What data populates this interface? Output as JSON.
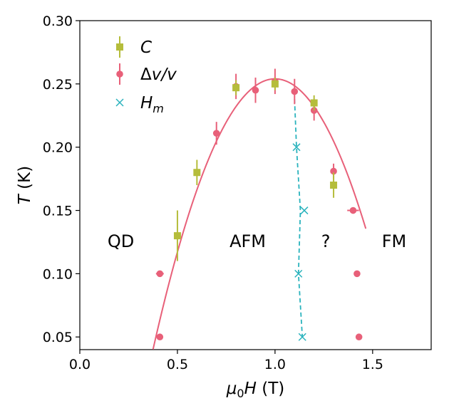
{
  "chart_data": {
    "type": "scatter",
    "xlabel": {
      "var": "μ",
      "sub": "0",
      "var2": "H",
      "unit": " (T)"
    },
    "ylabel": {
      "var": "T",
      "unit": " (K)"
    },
    "xlim": [
      0.0,
      1.8
    ],
    "ylim": [
      0.04,
      0.3
    ],
    "xticks": [
      "0.0",
      "0.5",
      "1.0",
      "1.5"
    ],
    "yticks": [
      "0.05",
      "0.10",
      "0.15",
      "0.20",
      "0.25",
      "0.30"
    ],
    "grid": false,
    "legend_position": "top-left",
    "colors": {
      "C": "#b5bd3b",
      "dv": "#e86079",
      "Hm": "#2ab3bd",
      "fit": "#e86079"
    },
    "series": [
      {
        "name": "C",
        "marker": "square",
        "points": [
          {
            "x": 0.5,
            "y": 0.13,
            "yerr": 0.02
          },
          {
            "x": 0.6,
            "y": 0.18,
            "yerr": 0.01
          },
          {
            "x": 0.8,
            "y": 0.247,
            "yerr": 0.006
          },
          {
            "x": 1.0,
            "y": 0.25,
            "yerr": 0.005
          },
          {
            "x": 1.2,
            "y": 0.235,
            "yerr": 0.006
          },
          {
            "x": 1.3,
            "y": 0.17,
            "yerr": 0.01
          }
        ]
      },
      {
        "name": "Δv/v",
        "marker": "circle",
        "points": [
          {
            "x": 0.41,
            "y": 0.05,
            "xerr": 0.01
          },
          {
            "x": 0.41,
            "y": 0.1,
            "xerr": 0.02
          },
          {
            "x": 0.7,
            "y": 0.211,
            "yerr": 0.009
          },
          {
            "x": 0.8,
            "y": 0.248,
            "yerr": 0.01
          },
          {
            "x": 0.9,
            "y": 0.245,
            "yerr": 0.01
          },
          {
            "x": 1.0,
            "y": 0.252,
            "yerr": 0.01
          },
          {
            "x": 1.1,
            "y": 0.244,
            "yerr": 0.01
          },
          {
            "x": 1.2,
            "y": 0.229,
            "yerr": 0.008
          },
          {
            "x": 1.3,
            "y": 0.181,
            "yerr": 0.006
          },
          {
            "x": 1.4,
            "y": 0.15,
            "xerr": 0.03
          },
          {
            "x": 1.42,
            "y": 0.1,
            "xerr": 0.01
          },
          {
            "x": 1.43,
            "y": 0.05,
            "xerr": 0.01
          }
        ]
      },
      {
        "name": "H_m",
        "marker": "x",
        "points": [
          {
            "x": 1.11,
            "y": 0.2
          },
          {
            "x": 1.15,
            "y": 0.15
          },
          {
            "x": 1.12,
            "y": 0.1
          },
          {
            "x": 1.14,
            "y": 0.05
          }
        ]
      }
    ],
    "fit_curve": {
      "vertex_x": 1.0,
      "vertex_y": 0.254,
      "a": 0.5475,
      "x_from": 0.375,
      "x_to": 1.465
    },
    "hm_line": [
      {
        "x": 1.1,
        "y": 0.238
      },
      {
        "x": 1.11,
        "y": 0.2
      },
      {
        "x": 1.12,
        "y": 0.175
      },
      {
        "x": 1.13,
        "y": 0.15
      },
      {
        "x": 1.12,
        "y": 0.1
      },
      {
        "x": 1.14,
        "y": 0.05
      }
    ],
    "legend": [
      {
        "key": "C",
        "text": "C",
        "sub": ""
      },
      {
        "key": "dv",
        "text": "Δv/v",
        "sub": ""
      },
      {
        "key": "Hm",
        "text": "H",
        "sub": "m"
      }
    ],
    "annotations": [
      {
        "text": "QD",
        "x": 0.21,
        "y": 0.126
      },
      {
        "text": "AFM",
        "x": 0.86,
        "y": 0.126
      },
      {
        "text": "?",
        "x": 1.26,
        "y": 0.126
      },
      {
        "text": "FM",
        "x": 1.61,
        "y": 0.126
      }
    ]
  }
}
